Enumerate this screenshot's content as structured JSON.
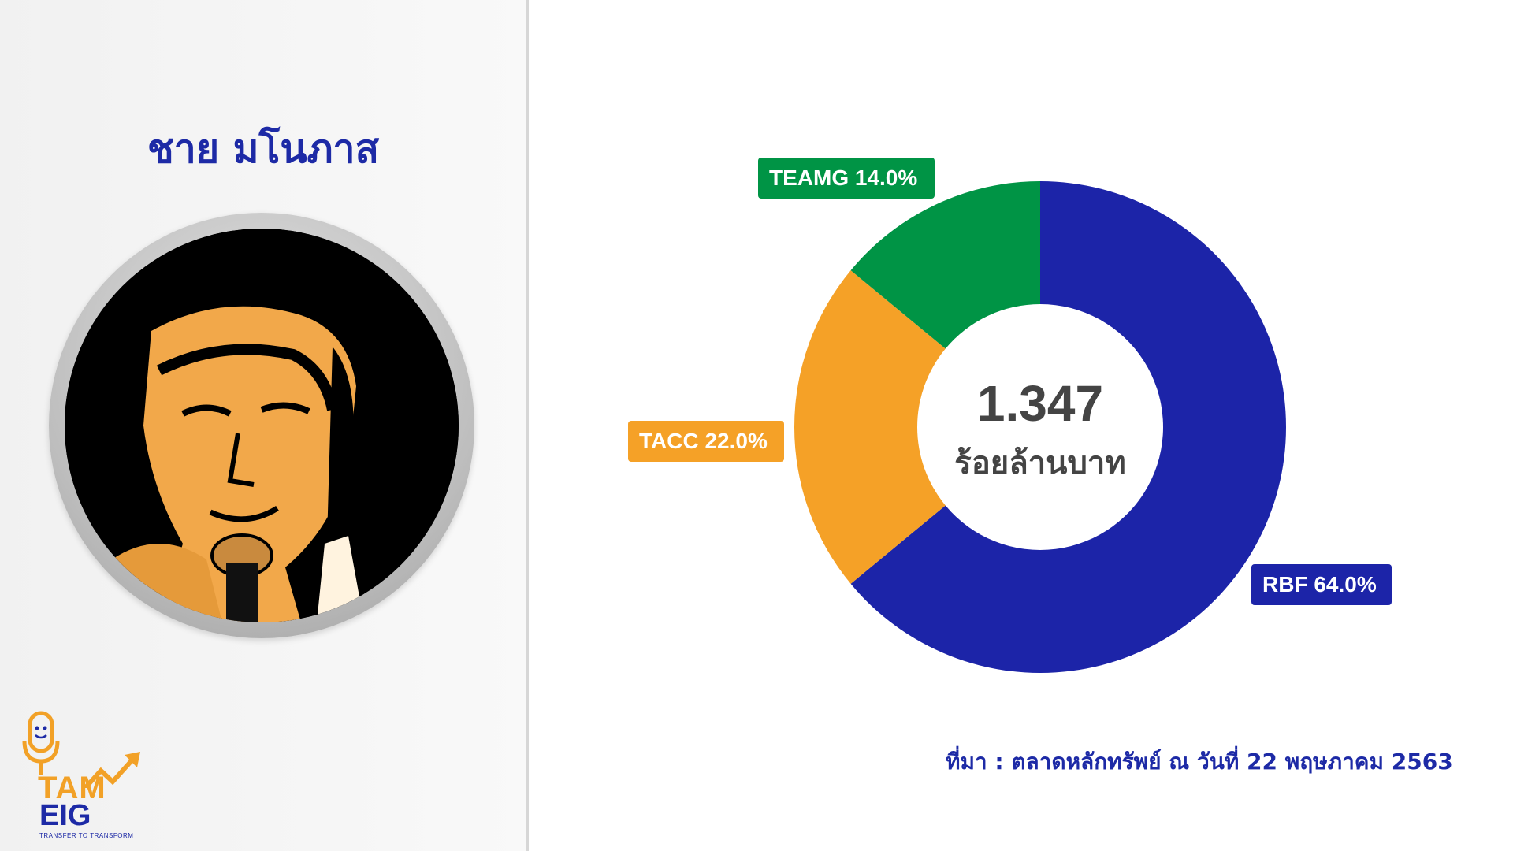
{
  "person": {
    "name": "ชาย มโนภาส"
  },
  "logo": {
    "line1": "TAM",
    "line2": "EIG",
    "tagline": "TRANSFER TO TRANSFORM",
    "colors": {
      "orange": "#f2a127",
      "blue": "#1d2aa6"
    }
  },
  "center": {
    "value": "1.347",
    "unit": "ร้อยล้านบาท"
  },
  "source": "ที่มา : ตลาดหลักทรัพย์ ณ วันที่ 22 พฤษภาคม 2563",
  "chart_data": {
    "type": "pie",
    "subtype": "donut",
    "title": "",
    "slices": [
      {
        "label": "RBF 64.0%",
        "name": "RBF",
        "value": 64.0,
        "color": "#1c24a8"
      },
      {
        "label": "TACC 22.0%",
        "name": "TACC",
        "value": 22.0,
        "color": "#f5a127"
      },
      {
        "label": "TEAMG 14.0%",
        "name": "TEAMG",
        "value": 14.0,
        "color": "#009445"
      }
    ],
    "start": "12 o'clock",
    "direction": "clockwise"
  }
}
